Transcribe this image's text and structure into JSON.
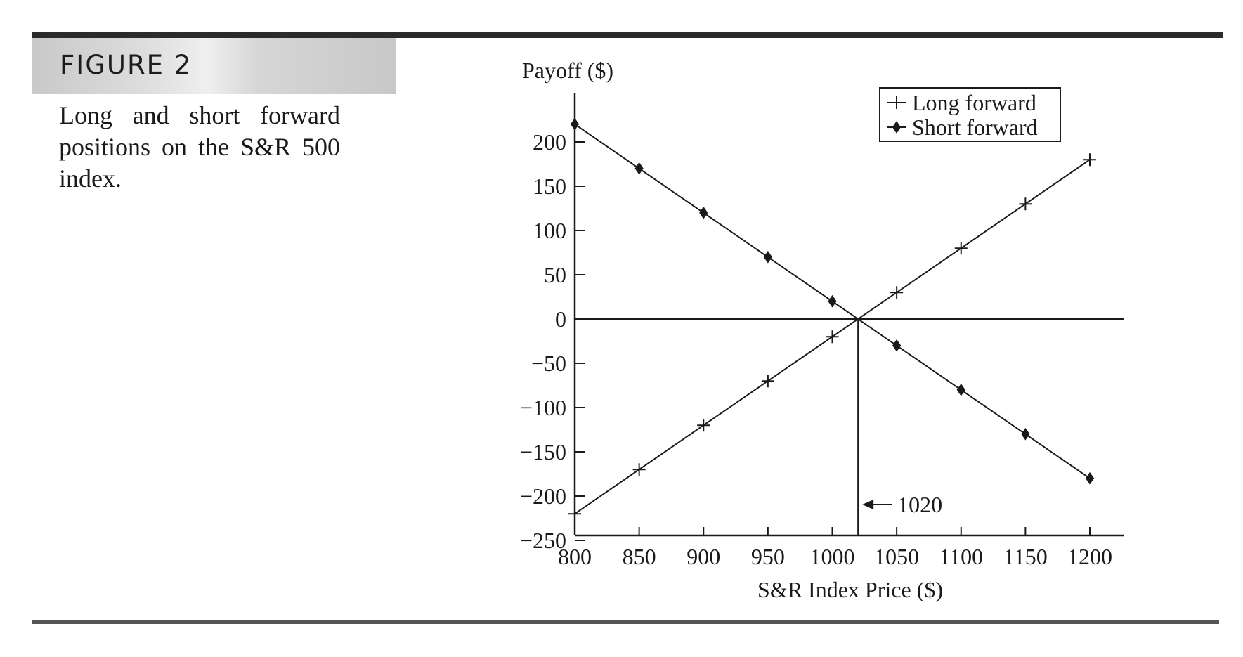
{
  "figure": {
    "label": "FIGURE 2",
    "caption": "Long and short forward positions on the S&R 500 index."
  },
  "chart_data": {
    "type": "line",
    "title": "",
    "xlabel": "S&R Index Price ($)",
    "ylabel": "Payoff ($)",
    "xlim": [
      800,
      1225
    ],
    "ylim": [
      -250,
      255
    ],
    "xticks": [
      800,
      850,
      900,
      950,
      1000,
      1050,
      1100,
      1150,
      1200
    ],
    "yticks": [
      200,
      150,
      100,
      50,
      0,
      -50,
      -100,
      -150,
      -200,
      -250
    ],
    "ytick_labels": [
      "200",
      "150",
      "100",
      "50",
      "0",
      "−50",
      "−100",
      "−150",
      "−200",
      "−250"
    ],
    "legend_position": "top-right",
    "grid": false,
    "x": [
      800,
      850,
      900,
      950,
      1000,
      1050,
      1100,
      1150,
      1200
    ],
    "series": [
      {
        "name": "Long forward",
        "marker": "plus",
        "values": [
          -220,
          -170,
          -120,
          -70,
          -20,
          30,
          80,
          130,
          180
        ]
      },
      {
        "name": "Short forward",
        "marker": "diamond",
        "values": [
          220,
          170,
          120,
          70,
          20,
          -30,
          -80,
          -130,
          -180
        ]
      }
    ],
    "annotation": {
      "text": "1020",
      "x": 1020,
      "y": 0
    },
    "colors": {
      "line": "#1a1a1a",
      "axis": "#1a1a1a"
    }
  }
}
